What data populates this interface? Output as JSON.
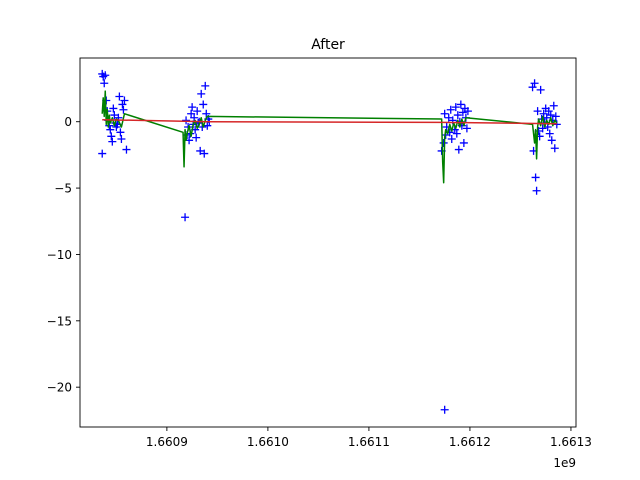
{
  "chart_data": {
    "type": "scatter",
    "title": "After",
    "xlabel": "",
    "ylabel": "",
    "x_offset_label": "1e9",
    "xlim": [
      1.660814,
      1.661305
    ],
    "ylim": [
      -23.0,
      4.8
    ],
    "x_ticks": [
      1.6609,
      1.661,
      1.6611,
      1.6612,
      1.6613
    ],
    "x_tick_labels": [
      "1.6609",
      "1.6610",
      "1.6611",
      "1.6612",
      "1.6613"
    ],
    "y_ticks": [
      0,
      -5,
      -10,
      -15,
      -20
    ],
    "y_tick_labels": [
      "0",
      "−5",
      "−10",
      "−15",
      "−20"
    ],
    "grid": false,
    "legend": "none",
    "colors": {
      "scatter": "#0000ff",
      "trend": "#008000",
      "baseline": "#d62728",
      "axes": "#000000"
    },
    "series": [
      {
        "kind": "scatter",
        "marker": "+",
        "points": [
          [
            1.660836,
            3.6
          ],
          [
            1.660837,
            3.4
          ],
          [
            1.660838,
            2.9
          ],
          [
            1.660839,
            3.5
          ],
          [
            1.660836,
            -2.4
          ],
          [
            1.66084,
            1.6
          ],
          [
            1.660841,
            0.8
          ],
          [
            1.660842,
            0.1
          ],
          [
            1.660843,
            -0.3
          ],
          [
            1.660844,
            -0.6
          ],
          [
            1.660845,
            -1.1
          ],
          [
            1.660846,
            -1.5
          ],
          [
            1.660847,
            1.0
          ],
          [
            1.660848,
            0.5
          ],
          [
            1.660849,
            -0.1
          ],
          [
            1.66085,
            -0.4
          ],
          [
            1.660851,
            -0.2
          ],
          [
            1.660852,
            0.3
          ],
          [
            1.660853,
            1.9
          ],
          [
            1.660854,
            -0.8
          ],
          [
            1.660855,
            -1.3
          ],
          [
            1.660856,
            1.3
          ],
          [
            1.660857,
            0.9
          ],
          [
            1.660858,
            1.6
          ],
          [
            1.66086,
            -2.1
          ],
          [
            1.660918,
            -7.2
          ],
          [
            1.660919,
            0.1
          ],
          [
            1.66092,
            -1.0
          ],
          [
            1.660921,
            -0.4
          ],
          [
            1.660922,
            -1.4
          ],
          [
            1.660923,
            -0.9
          ],
          [
            1.660924,
            0.6
          ],
          [
            1.660925,
            1.1
          ],
          [
            1.660926,
            -0.2
          ],
          [
            1.660927,
            0.3
          ],
          [
            1.660928,
            -0.6
          ],
          [
            1.660929,
            -1.2
          ],
          [
            1.66093,
            0.8
          ],
          [
            1.660931,
            -0.1
          ],
          [
            1.660932,
            0.0
          ],
          [
            1.660933,
            -2.2
          ],
          [
            1.660934,
            2.1
          ],
          [
            1.660935,
            -0.4
          ],
          [
            1.660936,
            1.3
          ],
          [
            1.660937,
            -2.4
          ],
          [
            1.660938,
            2.7
          ],
          [
            1.660939,
            0.6
          ],
          [
            1.66094,
            -0.3
          ],
          [
            1.660941,
            0.2
          ],
          [
            1.660942,
            0.0
          ],
          [
            1.661175,
            -21.7
          ],
          [
            1.661172,
            -2.2
          ],
          [
            1.661174,
            -1.6
          ],
          [
            1.661175,
            0.6
          ],
          [
            1.661176,
            -1.0
          ],
          [
            1.661177,
            -0.4
          ],
          [
            1.661179,
            0.3
          ],
          [
            1.66118,
            -0.8
          ],
          [
            1.661181,
            0.9
          ],
          [
            1.661182,
            -1.3
          ],
          [
            1.661183,
            0.1
          ],
          [
            1.661185,
            -0.6
          ],
          [
            1.661186,
            1.1
          ],
          [
            1.661187,
            -0.9
          ],
          [
            1.661188,
            0.5
          ],
          [
            1.661189,
            -2.1
          ],
          [
            1.66119,
            0.0
          ],
          [
            1.661191,
            1.3
          ],
          [
            1.661192,
            -0.3
          ],
          [
            1.661193,
            0.7
          ],
          [
            1.661194,
            -1.6
          ],
          [
            1.661195,
            1.0
          ],
          [
            1.661196,
            0.3
          ],
          [
            1.661197,
            -0.5
          ],
          [
            1.661198,
            0.8
          ],
          [
            1.661262,
            2.6
          ],
          [
            1.661264,
            2.9
          ],
          [
            1.661263,
            -2.2
          ],
          [
            1.661265,
            -4.2
          ],
          [
            1.661266,
            -5.2
          ],
          [
            1.661267,
            0.8
          ],
          [
            1.661268,
            -0.7
          ],
          [
            1.661269,
            -1.1
          ],
          [
            1.66127,
            2.4
          ],
          [
            1.661271,
            0.2
          ],
          [
            1.661272,
            -0.5
          ],
          [
            1.661273,
            0.6
          ],
          [
            1.661274,
            -0.1
          ],
          [
            1.661275,
            1.0
          ],
          [
            1.661276,
            0.3
          ],
          [
            1.661277,
            -0.4
          ],
          [
            1.661278,
            0.8
          ],
          [
            1.661279,
            -0.9
          ],
          [
            1.66128,
            0.5
          ],
          [
            1.661281,
            -1.4
          ],
          [
            1.661282,
            0.1
          ],
          [
            1.661283,
            1.2
          ],
          [
            1.661284,
            -2.0
          ],
          [
            1.661285,
            0.4
          ],
          [
            1.661286,
            -0.2
          ]
        ]
      },
      {
        "kind": "line",
        "color_key": "trend",
        "points": [
          [
            1.660836,
            0.6
          ],
          [
            1.660837,
            1.8
          ],
          [
            1.660838,
            0.4
          ],
          [
            1.660839,
            2.3
          ],
          [
            1.66084,
            -0.2
          ],
          [
            1.660841,
            0.9
          ],
          [
            1.660842,
            -0.4
          ],
          [
            1.660843,
            0.5
          ],
          [
            1.660844,
            -0.1
          ],
          [
            1.660846,
            0.3
          ],
          [
            1.660848,
            -0.3
          ],
          [
            1.66085,
            0.2
          ],
          [
            1.660852,
            0.1
          ],
          [
            1.660855,
            -0.4
          ],
          [
            1.660858,
            0.6
          ],
          [
            1.660916,
            -0.8
          ],
          [
            1.660917,
            -3.4
          ],
          [
            1.660918,
            -0.6
          ],
          [
            1.660919,
            -1.4
          ],
          [
            1.66092,
            -0.9
          ],
          [
            1.660922,
            -0.3
          ],
          [
            1.660924,
            -1.1
          ],
          [
            1.660926,
            -0.2
          ],
          [
            1.660928,
            0.1
          ],
          [
            1.66093,
            -0.5
          ],
          [
            1.660932,
            -0.2
          ],
          [
            1.660934,
            0.3
          ],
          [
            1.660936,
            -0.4
          ],
          [
            1.660938,
            0.1
          ],
          [
            1.66094,
            0.4
          ],
          [
            1.661172,
            0.2
          ],
          [
            1.661173,
            -3.0
          ],
          [
            1.661174,
            -4.6
          ],
          [
            1.661175,
            -1.2
          ],
          [
            1.661176,
            -0.6
          ],
          [
            1.661178,
            -0.9
          ],
          [
            1.66118,
            -0.2
          ],
          [
            1.661182,
            -0.7
          ],
          [
            1.661184,
            -0.1
          ],
          [
            1.661186,
            -0.5
          ],
          [
            1.661188,
            0.1
          ],
          [
            1.66119,
            -0.4
          ],
          [
            1.661192,
            0.2
          ],
          [
            1.661194,
            -0.3
          ],
          [
            1.661196,
            0.3
          ],
          [
            1.661262,
            -0.2
          ],
          [
            1.661264,
            -1.6
          ],
          [
            1.661265,
            -0.6
          ],
          [
            1.661266,
            -2.8
          ],
          [
            1.661267,
            -0.4
          ],
          [
            1.661268,
            0.2
          ],
          [
            1.66127,
            -0.3
          ],
          [
            1.661272,
            0.4
          ],
          [
            1.661274,
            -0.4
          ],
          [
            1.661276,
            0.1
          ],
          [
            1.661278,
            -0.2
          ],
          [
            1.66128,
            0.3
          ],
          [
            1.661282,
            -0.3
          ],
          [
            1.661284,
            0.1
          ],
          [
            1.661286,
            -0.1
          ]
        ]
      },
      {
        "kind": "line",
        "color_key": "baseline",
        "points": [
          [
            1.660836,
            0.15
          ],
          [
            1.660942,
            0.0
          ],
          [
            1.661172,
            -0.05
          ],
          [
            1.661286,
            -0.15
          ]
        ]
      }
    ]
  }
}
